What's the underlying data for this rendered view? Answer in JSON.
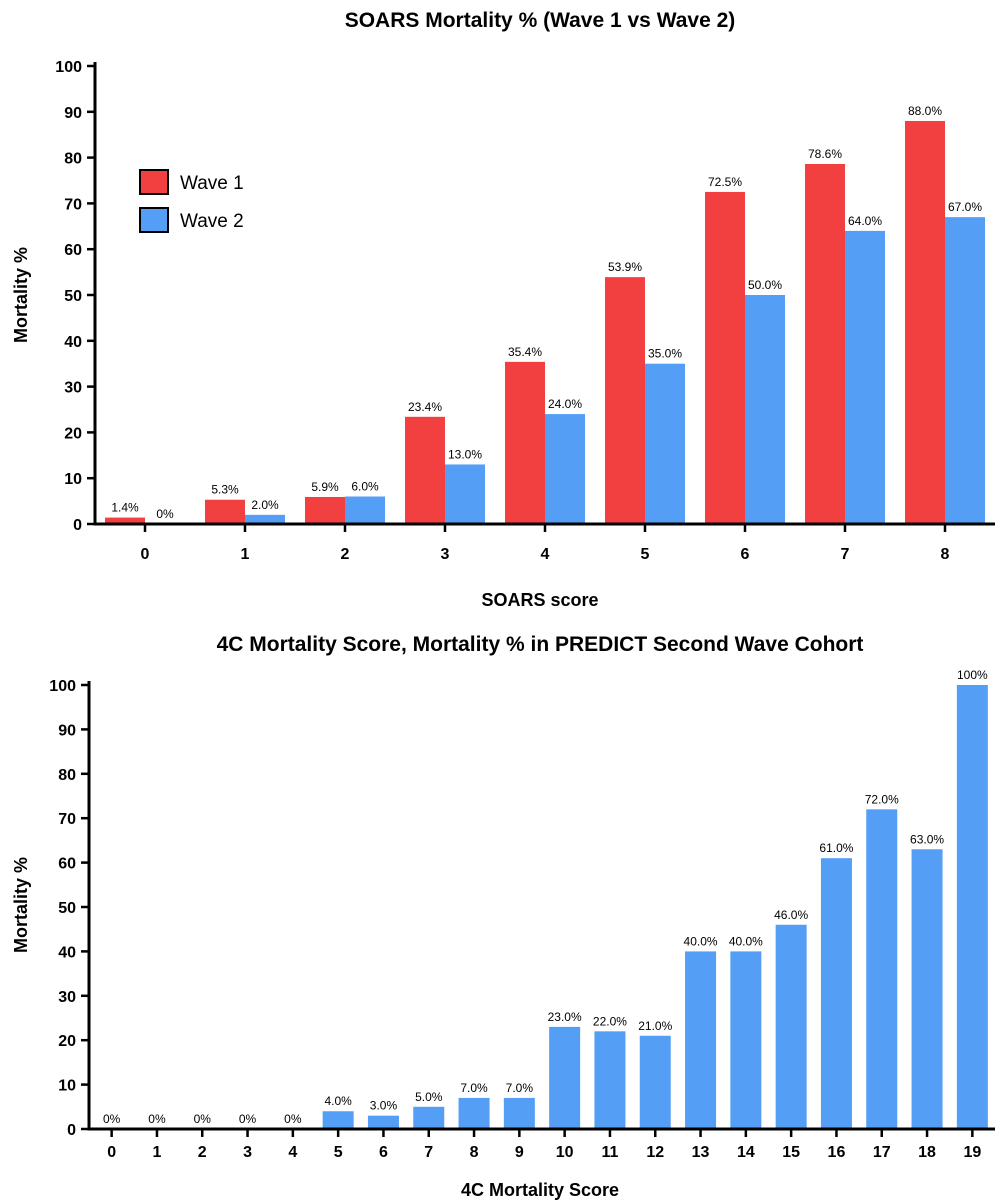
{
  "colors": {
    "wave1": "#F23F3F",
    "wave2": "#559EF5",
    "axis": "#000000"
  },
  "chart_data": [
    {
      "type": "bar",
      "title": "SOARS Mortality %  (Wave 1 vs Wave 2)",
      "xlabel": "SOARS score",
      "ylabel": "Mortality %",
      "ylim": [
        0,
        100
      ],
      "yticks": [
        0,
        10,
        20,
        30,
        40,
        50,
        60,
        70,
        80,
        90,
        100
      ],
      "categories": [
        "0",
        "1",
        "2",
        "3",
        "4",
        "5",
        "6",
        "7",
        "8"
      ],
      "series": [
        {
          "name": "Wave 1",
          "color": "#F23F3F",
          "values": [
            1.4,
            5.3,
            5.9,
            23.4,
            35.4,
            53.9,
            72.5,
            78.6,
            88.0
          ],
          "labels": [
            "1.4%",
            "5.3%",
            "5.9%",
            "23.4%",
            "35.4%",
            "53.9%",
            "72.5%",
            "78.6%",
            "88.0%"
          ]
        },
        {
          "name": "Wave 2",
          "color": "#559EF5",
          "values": [
            0,
            2.0,
            6.0,
            13.0,
            24.0,
            35.0,
            50.0,
            64.0,
            67.0
          ],
          "labels": [
            "0%",
            "2.0%",
            "6.0%",
            "13.0%",
            "24.0%",
            "35.0%",
            "50.0%",
            "64.0%",
            "67.0%"
          ]
        }
      ],
      "legend": "top-left",
      "grid": false
    },
    {
      "type": "bar",
      "title": "4C Mortality Score, Mortality % in PREDICT Second Wave Cohort",
      "xlabel": "4C Mortality Score",
      "ylabel": "Mortality %",
      "ylim": [
        0,
        100
      ],
      "yticks": [
        0,
        10,
        20,
        30,
        40,
        50,
        60,
        70,
        80,
        90,
        100
      ],
      "categories": [
        "0",
        "1",
        "2",
        "3",
        "4",
        "5",
        "6",
        "7",
        "8",
        "9",
        "10",
        "11",
        "12",
        "13",
        "14",
        "15",
        "16",
        "17",
        "18",
        "19"
      ],
      "series": [
        {
          "color": "#559EF5",
          "values": [
            0,
            0,
            0,
            0,
            0,
            4.0,
            3.0,
            5.0,
            7.0,
            7.0,
            23.0,
            22.0,
            21.0,
            40.0,
            40.0,
            46.0,
            61.0,
            72.0,
            63.0,
            100
          ],
          "labels": [
            "0%",
            "0%",
            "0%",
            "0%",
            "0%",
            "4.0%",
            "3.0%",
            "5.0%",
            "7.0%",
            "7.0%",
            "23.0%",
            "22.0%",
            "21.0%",
            "40.0%",
            "40.0%",
            "46.0%",
            "61.0%",
            "72.0%",
            "63.0%",
            "100%"
          ]
        }
      ],
      "legend": "none",
      "grid": false
    }
  ]
}
